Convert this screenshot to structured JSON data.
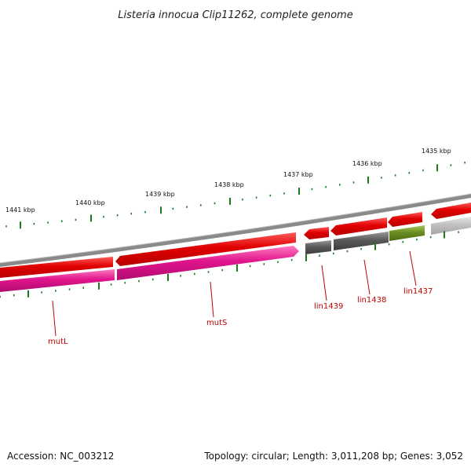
{
  "title": "Listeria innocua Clip11262, complete genome",
  "ticks": [
    {
      "label": "1441 kbp"
    },
    {
      "label": "1440 kbp"
    },
    {
      "label": "1439 kbp"
    },
    {
      "label": "1438 kbp"
    },
    {
      "label": "1437 kbp"
    },
    {
      "label": "1436 kbp"
    },
    {
      "label": "1435 kbp"
    }
  ],
  "genes": [
    {
      "name": "mutL"
    },
    {
      "name": "mutS"
    },
    {
      "name": "lin1439"
    },
    {
      "name": "lin1438"
    },
    {
      "name": "lin1437"
    }
  ],
  "footer": {
    "accession": "Accession: NC_003212",
    "summary": "Topology: circular; Length: 3,011,208 bp; Genes: 3,052"
  },
  "colors": {
    "backbone": "#808080",
    "strand_red": "#e00000",
    "cds_magenta": "#e0148c",
    "cds_gray": "#5a5a5a",
    "cds_olive": "#6b8e23",
    "cds_light_gray": "#c0c0c0",
    "tick_green": "#1a7a1a",
    "label_red": "#c00000"
  }
}
